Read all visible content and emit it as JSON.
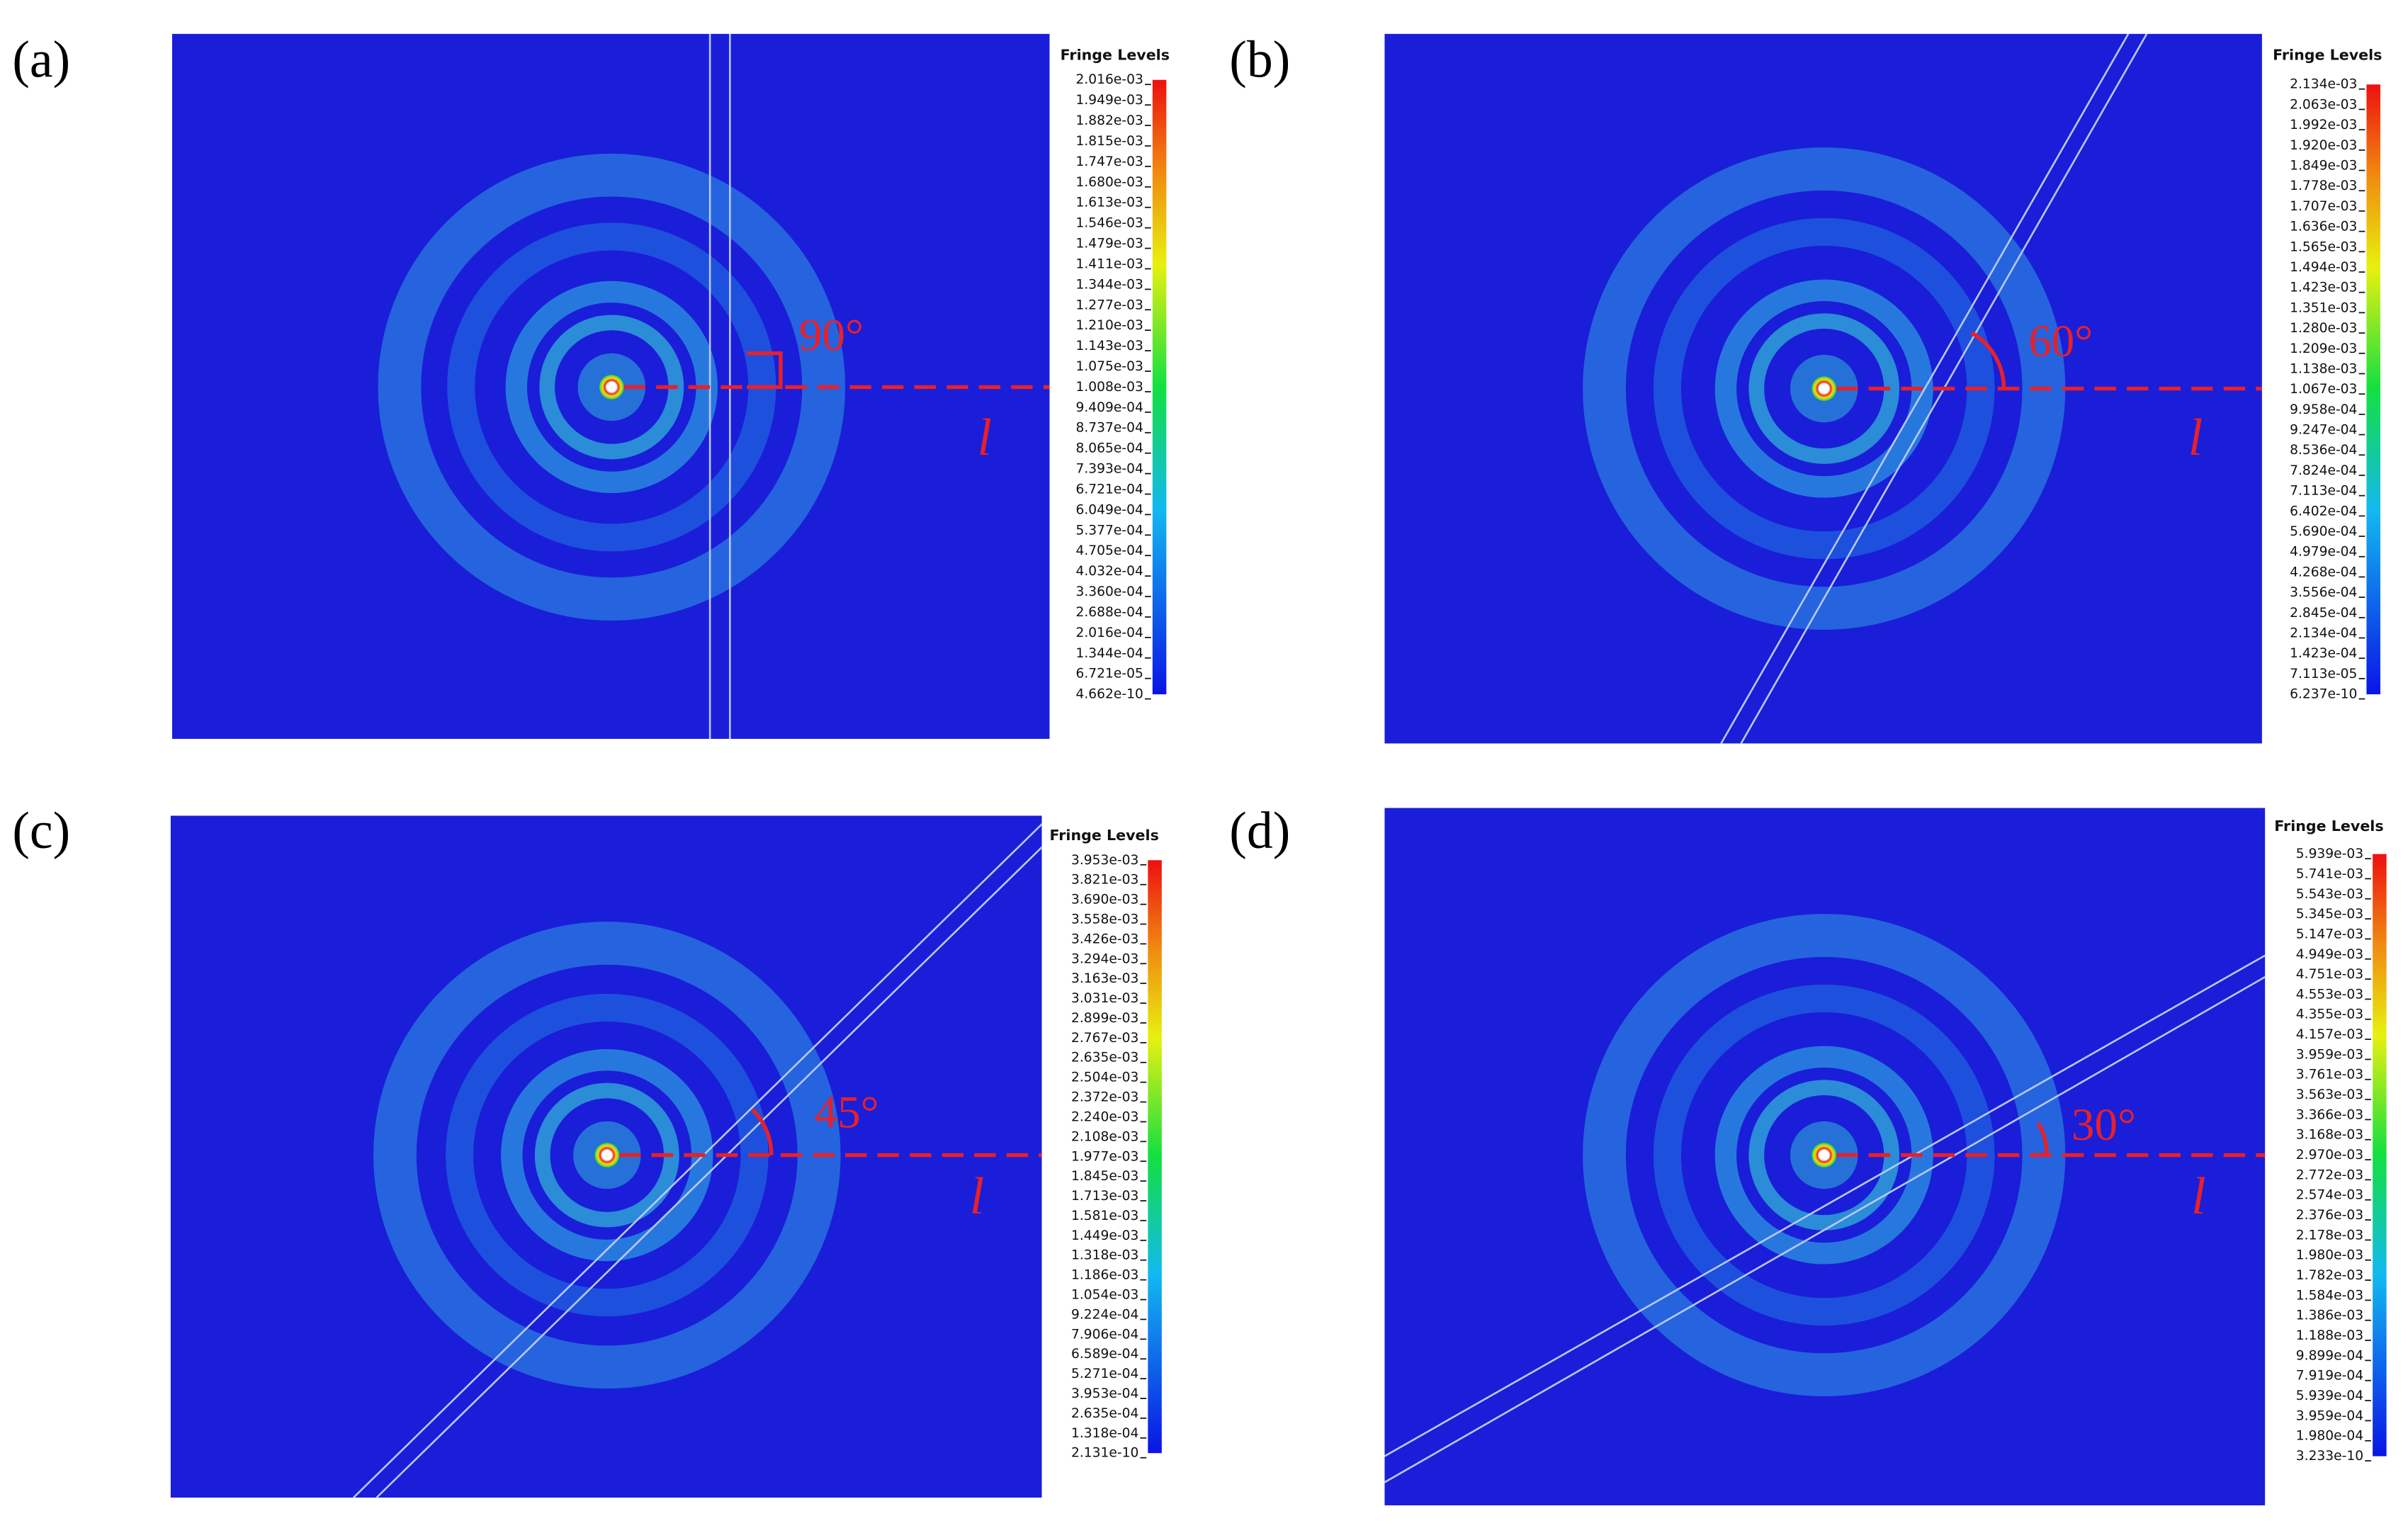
{
  "panels": [
    {
      "label": "(a)",
      "legend_title": "Fringe Levels",
      "angle": "90°",
      "line_label": "l",
      "levels": [
        "2.016e-03",
        "1.949e-03",
        "1.882e-03",
        "1.815e-03",
        "1.747e-03",
        "1.680e-03",
        "1.613e-03",
        "1.546e-03",
        "1.479e-03",
        "1.411e-03",
        "1.344e-03",
        "1.277e-03",
        "1.210e-03",
        "1.143e-03",
        "1.075e-03",
        "1.008e-03",
        "9.409e-04",
        "8.737e-04",
        "8.065e-04",
        "7.393e-04",
        "6.721e-04",
        "6.049e-04",
        "5.377e-04",
        "4.705e-04",
        "4.032e-04",
        "3.360e-04",
        "2.688e-04",
        "2.016e-04",
        "1.344e-04",
        "6.721e-05",
        "4.662e-10"
      ]
    },
    {
      "label": "(b)",
      "legend_title": "Fringe Levels",
      "angle": "60°",
      "line_label": "l",
      "levels": [
        "2.134e-03",
        "2.063e-03",
        "1.992e-03",
        "1.920e-03",
        "1.849e-03",
        "1.778e-03",
        "1.707e-03",
        "1.636e-03",
        "1.565e-03",
        "1.494e-03",
        "1.423e-03",
        "1.351e-03",
        "1.280e-03",
        "1.209e-03",
        "1.138e-03",
        "1.067e-03",
        "9.958e-04",
        "9.247e-04",
        "8.536e-04",
        "7.824e-04",
        "7.113e-04",
        "6.402e-04",
        "5.690e-04",
        "4.979e-04",
        "4.268e-04",
        "3.556e-04",
        "2.845e-04",
        "2.134e-04",
        "1.423e-04",
        "7.113e-05",
        "6.237e-10"
      ]
    },
    {
      "label": "(c)",
      "legend_title": "Fringe Levels",
      "angle": "45°",
      "line_label": "l",
      "levels": [
        "3.953e-03",
        "3.821e-03",
        "3.690e-03",
        "3.558e-03",
        "3.426e-03",
        "3.294e-03",
        "3.163e-03",
        "3.031e-03",
        "2.899e-03",
        "2.767e-03",
        "2.635e-03",
        "2.504e-03",
        "2.372e-03",
        "2.240e-03",
        "2.108e-03",
        "1.977e-03",
        "1.845e-03",
        "1.713e-03",
        "1.581e-03",
        "1.449e-03",
        "1.318e-03",
        "1.186e-03",
        "1.054e-03",
        "9.224e-04",
        "7.906e-04",
        "6.589e-04",
        "5.271e-04",
        "3.953e-04",
        "2.635e-04",
        "1.318e-04",
        "2.131e-10"
      ]
    },
    {
      "label": "(d)",
      "legend_title": "Fringe Levels",
      "angle": "30°",
      "line_label": "l",
      "levels": [
        "5.939e-03",
        "5.741e-03",
        "5.543e-03",
        "5.345e-03",
        "5.147e-03",
        "4.949e-03",
        "4.751e-03",
        "4.553e-03",
        "4.355e-03",
        "4.157e-03",
        "3.959e-03",
        "3.761e-03",
        "3.563e-03",
        "3.366e-03",
        "3.168e-03",
        "2.970e-03",
        "2.772e-03",
        "2.574e-03",
        "2.376e-03",
        "2.178e-03",
        "1.980e-03",
        "1.782e-03",
        "1.584e-03",
        "1.386e-03",
        "1.188e-03",
        "9.899e-04",
        "7.919e-04",
        "5.939e-04",
        "3.959e-04",
        "1.980e-04",
        "3.233e-10"
      ]
    }
  ]
}
